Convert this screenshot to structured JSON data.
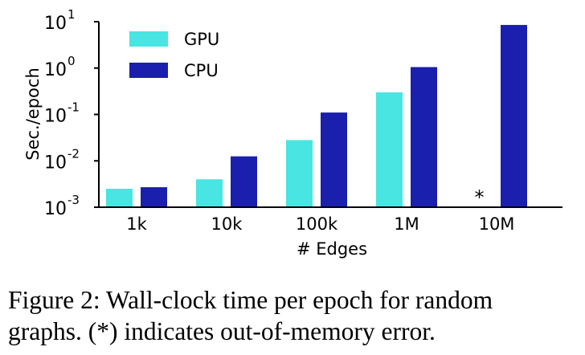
{
  "chart_data": {
    "type": "bar",
    "categories": [
      "1k",
      "10k",
      "100k",
      "1M",
      "10M"
    ],
    "series": [
      {
        "name": "GPU",
        "values": [
          0.0025,
          0.004,
          0.028,
          0.3,
          null
        ],
        "color": "#48e5e3"
      },
      {
        "name": "CPU",
        "values": [
          0.0027,
          0.0125,
          0.11,
          1.05,
          8.5
        ],
        "color": "#1a1fad"
      }
    ],
    "xlabel": "# Edges",
    "ylabel": "Sec./epoch",
    "yscale": "log",
    "ylim": [
      0.001,
      10
    ],
    "yticks": [
      {
        "base": "10",
        "exp": "-3"
      },
      {
        "base": "10",
        "exp": "-2"
      },
      {
        "base": "10",
        "exp": "-1"
      },
      {
        "base": "10",
        "exp": "0"
      },
      {
        "base": "10",
        "exp": "1"
      }
    ],
    "legend_position": "top-left",
    "grid": false,
    "annotations": [
      {
        "text": "*",
        "category": "10M",
        "series": "GPU"
      }
    ]
  },
  "caption": {
    "line1": "Figure 2:  Wall-clock time per epoch for random",
    "line2": "graphs. (*) indicates out-of-memory error."
  }
}
